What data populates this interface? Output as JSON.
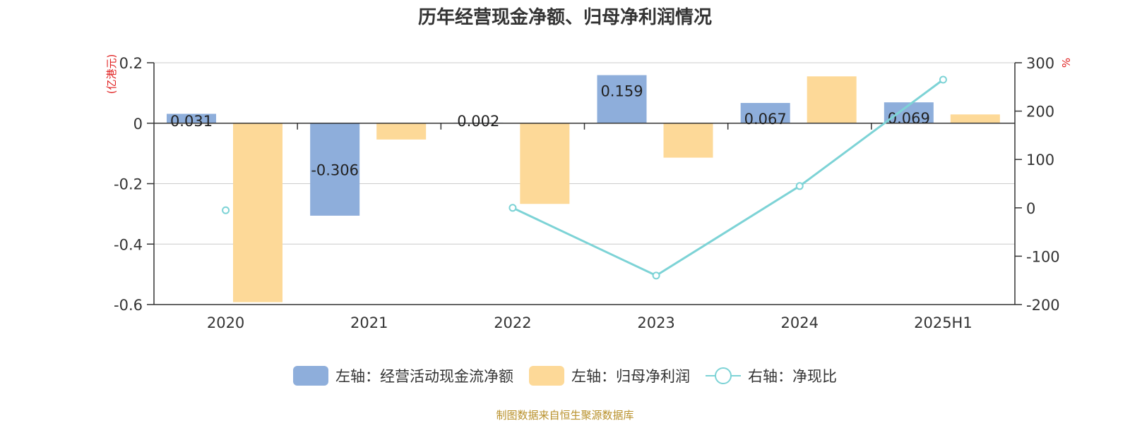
{
  "title": "历年经营现金净额、归母净利润情况",
  "source_note": "制图数据来自恒生聚源数据库",
  "colors": {
    "bar1": "#8eaedb",
    "bar2": "#fdd998",
    "line": "#7dd3d6",
    "axis_unit": "#e02020",
    "grid": "#cccccc",
    "text": "#333333"
  },
  "chart_data": {
    "type": "bar",
    "categories": [
      "2020",
      "2021",
      "2022",
      "2023",
      "2024",
      "2025H1"
    ],
    "series": [
      {
        "name": "左轴：经营活动现金流净额",
        "type": "bar",
        "axis": "left",
        "values": [
          0.031,
          -0.306,
          0.002,
          0.159,
          0.067,
          0.069
        ],
        "labels": [
          "0.031",
          "-0.306",
          "0.002",
          "0.159",
          "0.067",
          "0.069"
        ]
      },
      {
        "name": "左轴：归母净利润",
        "type": "bar",
        "axis": "left",
        "values": [
          -0.592,
          -0.054,
          -0.267,
          -0.114,
          0.155,
          0.029
        ]
      },
      {
        "name": "右轴：净现比",
        "type": "line",
        "axis": "right",
        "values": [
          -5,
          null,
          0,
          -140,
          45,
          265
        ]
      }
    ],
    "left_axis": {
      "unit": "(亿港元)",
      "ylim": [
        -0.6,
        0.2
      ],
      "ticks": [
        0.2,
        0,
        -0.2,
        -0.4,
        -0.6
      ],
      "tick_labels": [
        "0.2",
        "0",
        "-0.2",
        "-0.4",
        "-0.6"
      ]
    },
    "right_axis": {
      "unit": "%",
      "ylim": [
        -200,
        300
      ],
      "ticks": [
        300,
        200,
        100,
        0,
        -100,
        -200
      ],
      "tick_labels": [
        "300",
        "200",
        "100",
        "0",
        "-100",
        "-200"
      ]
    },
    "grid": true,
    "legend_position": "bottom"
  }
}
